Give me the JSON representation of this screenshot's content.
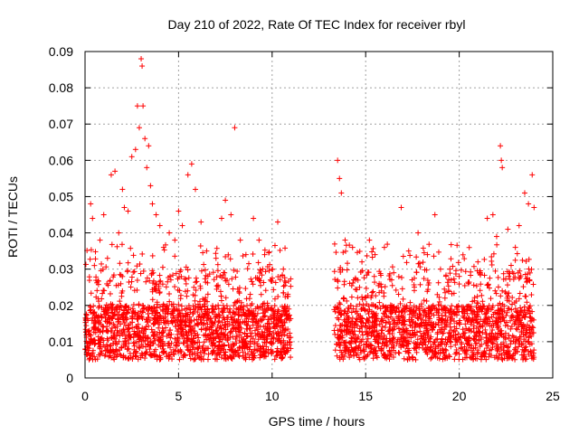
{
  "chart_data": {
    "type": "scatter",
    "title": "Day 210 of 2022, Rate Of TEC Index for receiver rbyl",
    "xlabel": "GPS time / hours",
    "ylabel": "ROTI / TECUs",
    "xlim": [
      0,
      25
    ],
    "ylim": [
      0,
      0.09
    ],
    "x_ticks": [
      0,
      5,
      10,
      15,
      20,
      25
    ],
    "y_ticks": [
      0,
      0.01,
      0.02,
      0.03,
      0.04,
      0.05,
      0.06,
      0.07,
      0.08,
      0.09
    ],
    "x_tick_labels": [
      "0",
      "5",
      "10",
      "15",
      "20",
      "25"
    ],
    "y_tick_labels": [
      "0",
      "0.01",
      "0.02",
      "0.03",
      "0.04",
      "0.05",
      "0.06",
      "0.07",
      "0.08",
      "0.09"
    ],
    "grid": true,
    "marker": "plus",
    "color": "#ff0000",
    "data_gap_hours": [
      11.0,
      13.3
    ],
    "series": [
      {
        "points": [
          [
            0.2,
            0.012
          ],
          [
            0.3,
            0.048
          ],
          [
            0.4,
            0.044
          ],
          [
            0.5,
            0.031
          ],
          [
            0.8,
            0.038
          ],
          [
            1.0,
            0.045
          ],
          [
            1.2,
            0.033
          ],
          [
            1.4,
            0.056
          ],
          [
            1.6,
            0.057
          ],
          [
            1.8,
            0.04
          ],
          [
            2.0,
            0.052
          ],
          [
            2.1,
            0.047
          ],
          [
            2.3,
            0.046
          ],
          [
            2.5,
            0.061
          ],
          [
            2.7,
            0.063
          ],
          [
            2.8,
            0.075
          ],
          [
            2.9,
            0.069
          ],
          [
            3.0,
            0.088
          ],
          [
            3.05,
            0.086
          ],
          [
            3.1,
            0.075
          ],
          [
            3.2,
            0.066
          ],
          [
            3.3,
            0.058
          ],
          [
            3.4,
            0.064
          ],
          [
            3.5,
            0.053
          ],
          [
            3.6,
            0.048
          ],
          [
            3.8,
            0.045
          ],
          [
            4.0,
            0.042
          ],
          [
            4.2,
            0.036
          ],
          [
            4.5,
            0.04
          ],
          [
            4.8,
            0.038
          ],
          [
            5.0,
            0.046
          ],
          [
            5.2,
            0.042
          ],
          [
            5.5,
            0.056
          ],
          [
            5.7,
            0.059
          ],
          [
            5.9,
            0.052
          ],
          [
            6.2,
            0.043
          ],
          [
            6.5,
            0.035
          ],
          [
            7.0,
            0.033
          ],
          [
            7.3,
            0.044
          ],
          [
            7.5,
            0.049
          ],
          [
            7.8,
            0.045
          ],
          [
            8.0,
            0.069
          ],
          [
            8.3,
            0.038
          ],
          [
            8.6,
            0.034
          ],
          [
            9.0,
            0.044
          ],
          [
            9.3,
            0.038
          ],
          [
            9.6,
            0.034
          ],
          [
            10.0,
            0.03
          ],
          [
            10.3,
            0.043
          ],
          [
            10.6,
            0.03
          ],
          [
            13.5,
            0.06
          ],
          [
            13.6,
            0.055
          ],
          [
            13.7,
            0.051
          ],
          [
            13.9,
            0.038
          ],
          [
            14.3,
            0.036
          ],
          [
            14.8,
            0.032
          ],
          [
            15.2,
            0.038
          ],
          [
            15.5,
            0.034
          ],
          [
            16.0,
            0.036
          ],
          [
            16.5,
            0.029
          ],
          [
            16.9,
            0.047
          ],
          [
            17.3,
            0.035
          ],
          [
            17.8,
            0.04
          ],
          [
            18.3,
            0.034
          ],
          [
            18.7,
            0.045
          ],
          [
            19.0,
            0.03
          ],
          [
            19.5,
            0.03
          ],
          [
            20.0,
            0.028
          ],
          [
            20.5,
            0.026
          ],
          [
            21.0,
            0.032
          ],
          [
            21.5,
            0.044
          ],
          [
            21.8,
            0.045
          ],
          [
            22.0,
            0.039
          ],
          [
            22.2,
            0.064
          ],
          [
            22.25,
            0.06
          ],
          [
            22.3,
            0.058
          ],
          [
            22.6,
            0.041
          ],
          [
            23.0,
            0.036
          ],
          [
            23.2,
            0.042
          ],
          [
            23.5,
            0.051
          ],
          [
            23.7,
            0.048
          ],
          [
            23.9,
            0.056
          ],
          [
            24.0,
            0.047
          ]
        ]
      }
    ]
  }
}
